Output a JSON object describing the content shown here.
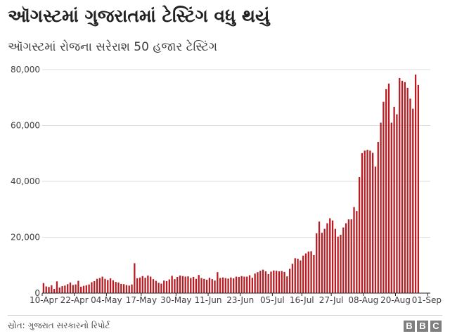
{
  "title": "ઑગસ્ટમાં ગુજરાતમાં ટેસ્ટિંગ વધુ થયું",
  "subtitle": "ઑગસ્ટમાં રોજના સરેરાશ 50 હજાર ટેસ્ટિંગ",
  "source": "સ્રોત: ગુજરાત સરકારનો રિપોર્ટ",
  "logo": [
    "B",
    "B",
    "C"
  ],
  "colors": {
    "bar": "#b81c22",
    "grid": "#dddddd",
    "axis": "#222222"
  },
  "chart_data": {
    "type": "bar",
    "title": "ઑગસ્ટમાં ગુજરાતમાં ટેસ્ટિંગ વધુ થયું",
    "subtitle": "ઑગસ્ટમાં રોજના સરેરાશ 50 હજાર ટેસ્ટિંગ",
    "xlabel": "",
    "ylabel": "",
    "ylim": [
      0,
      80000
    ],
    "yticks": [
      0,
      20000,
      40000,
      60000,
      80000
    ],
    "ytick_labels": [
      "0",
      "20,000",
      "40,000",
      "60,000",
      "80,000"
    ],
    "grid": true,
    "x_start": "2020-04-10",
    "x_end": "2020-09-02",
    "x_tick_dates": [
      "2020-04-10",
      "2020-04-22",
      "2020-05-04",
      "2020-05-17",
      "2020-05-30",
      "2020-06-11",
      "2020-06-23",
      "2020-07-05",
      "2020-07-16",
      "2020-07-27",
      "2020-08-08",
      "2020-08-20",
      "2020-09-01"
    ],
    "x_tick_labels": [
      "10-Apr",
      "22-Apr",
      "04-May",
      "17-May",
      "30-May",
      "11-Jun",
      "23-Jun",
      "05-Jul",
      "16-Jul",
      "27-Jul",
      "08-Aug",
      "20-Aug",
      "01-Sep"
    ],
    "values": [
      3600,
      2400,
      2200,
      2800,
      1500,
      4200,
      2000,
      2500,
      2700,
      3200,
      3800,
      2900,
      3100,
      4400,
      2300,
      2600,
      2800,
      3100,
      3900,
      4300,
      5100,
      5400,
      5900,
      5100,
      4700,
      5300,
      4600,
      4000,
      3800,
      3300,
      3200,
      2900,
      2700,
      3100,
      10700,
      5300,
      5600,
      6100,
      5500,
      6300,
      5900,
      5000,
      4400,
      3700,
      3400,
      4500,
      4300,
      4900,
      6200,
      5000,
      5800,
      6300,
      6100,
      5900,
      6000,
      5400,
      5800,
      5100,
      6500,
      5400,
      5100,
      4800,
      5500,
      5000,
      4500,
      7500,
      5400,
      5600,
      5400,
      5200,
      5600,
      5300,
      5900,
      5800,
      6100,
      5900,
      5900,
      6400,
      5500,
      7000,
      7500,
      8000,
      8400,
      7800,
      6800,
      7700,
      8100,
      8000,
      7800,
      7900,
      7600,
      6000,
      8700,
      10500,
      12500,
      12300,
      11700,
      13400,
      14200,
      14900,
      15000,
      13600,
      21400,
      25600,
      21600,
      23000,
      25000,
      26800,
      26000,
      23000,
      20200,
      20900,
      23500,
      25000,
      26400,
      26400,
      30800,
      29400,
      41500,
      50100,
      51000,
      51300,
      51000,
      50200,
      45300,
      54100,
      61000,
      68500,
      73000,
      75000,
      61000,
      66700,
      64000,
      77000,
      76000,
      75500,
      73500,
      69600,
      66000,
      78200,
      74500
    ]
  }
}
